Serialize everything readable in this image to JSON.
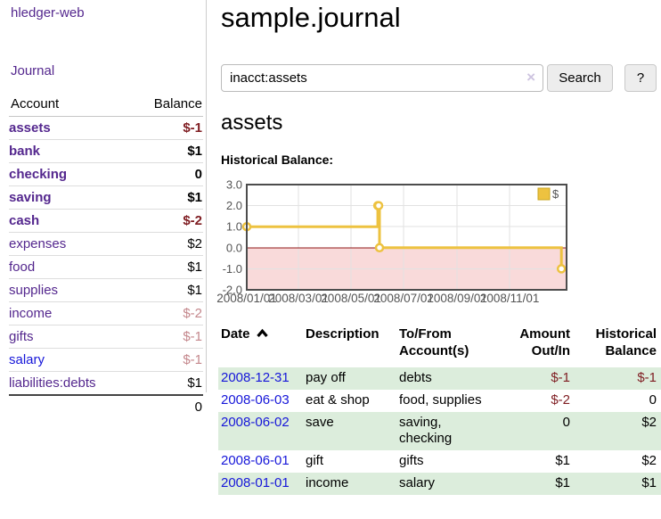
{
  "app": {
    "title": "hledger-web",
    "nav": {
      "journal": "Journal"
    }
  },
  "sidebar": {
    "header": {
      "account": "Account",
      "balance": "Balance"
    },
    "accounts": [
      {
        "name": "assets",
        "indent": 1,
        "bold": true,
        "blue": false,
        "balance": "$-1",
        "balance_class": "neg-strong"
      },
      {
        "name": "bank",
        "indent": 2,
        "bold": true,
        "blue": false,
        "balance": "$1",
        "balance_class": "pos"
      },
      {
        "name": "checking",
        "indent": 3,
        "bold": true,
        "blue": false,
        "balance": "0",
        "balance_class": "pos"
      },
      {
        "name": "saving",
        "indent": 3,
        "bold": true,
        "blue": false,
        "balance": "$1",
        "balance_class": "pos"
      },
      {
        "name": "cash",
        "indent": 2,
        "bold": true,
        "blue": false,
        "balance": "$-2",
        "balance_class": "neg-strong"
      },
      {
        "name": "expenses",
        "indent": 1,
        "bold": false,
        "blue": false,
        "balance": "$2",
        "balance_class": "pos"
      },
      {
        "name": "food",
        "indent": 2,
        "bold": false,
        "blue": false,
        "balance": "$1",
        "balance_class": "pos"
      },
      {
        "name": "supplies",
        "indent": 2,
        "bold": false,
        "blue": false,
        "balance": "$1",
        "balance_class": "pos"
      },
      {
        "name": "income",
        "indent": 1,
        "bold": false,
        "blue": false,
        "balance": "$-2",
        "balance_class": "neg-weak"
      },
      {
        "name": "gifts",
        "indent": 2,
        "bold": false,
        "blue": false,
        "balance": "$-1",
        "balance_class": "neg-weak"
      },
      {
        "name": "salary",
        "indent": 2,
        "bold": false,
        "blue": true,
        "balance": "$-1",
        "balance_class": "neg-weak"
      },
      {
        "name": "liabilities:debts",
        "indent": 1,
        "bold": false,
        "blue": false,
        "balance": "$1",
        "balance_class": "pos"
      }
    ],
    "total": "0"
  },
  "main": {
    "title": "sample.journal",
    "search": {
      "value": "inacct:assets",
      "clear_icon": "×",
      "button_label": "Search",
      "help_label": "?"
    },
    "account_heading": "assets",
    "chart_label": "Historical Balance:"
  },
  "chart_data": {
    "type": "line",
    "style": "step",
    "title": "Historical Balance",
    "series": [
      {
        "name": "$",
        "color": "#edc240",
        "points": [
          [
            "2008-01-01",
            1
          ],
          [
            "2008-06-01",
            2
          ],
          [
            "2008-06-02",
            2
          ],
          [
            "2008-06-03",
            0
          ],
          [
            "2008-12-31",
            -1
          ]
        ]
      }
    ],
    "point_days": [
      0,
      152,
      153,
      154,
      365
    ],
    "x_tick_days": [
      0,
      60,
      121,
      182,
      244,
      305
    ],
    "x_tick_labels": [
      "2008/01/01",
      "2008/03/01",
      "2008/05/01",
      "2008/07/01",
      "2008/09/01",
      "2008/11/01"
    ],
    "x_range_days": [
      0,
      371
    ],
    "y_ticks": [
      3,
      2,
      1,
      0,
      -1,
      -2
    ],
    "y_range": [
      -2,
      3
    ],
    "legend": {
      "label": "$",
      "position": "top-right"
    },
    "grid": true,
    "colors": {
      "line": "#edc240",
      "marker_fill": "#ffffff",
      "grid": "#e2e2e2",
      "border": "#4d4d4d",
      "axis_text": "#545454",
      "negative_fill": "#f9dada",
      "zero_line": "#8f1414",
      "legend_swatch_border": "#caa61f"
    }
  },
  "register": {
    "headers": {
      "date": "Date",
      "description": "Description",
      "accounts": "To/From Account(s)",
      "amount": "Amount Out/In",
      "balance": "Historical Balance"
    },
    "rows": [
      {
        "date": "2008-12-31",
        "description": "pay off",
        "accounts": "debts",
        "amount": "$-1",
        "amount_neg": true,
        "balance": "$-1",
        "balance_neg": true,
        "shaded": true
      },
      {
        "date": "2008-06-03",
        "description": "eat & shop",
        "accounts": "food, supplies",
        "amount": "$-2",
        "amount_neg": true,
        "balance": "0",
        "balance_neg": false,
        "shaded": false
      },
      {
        "date": "2008-06-02",
        "description": "save",
        "accounts": "saving, checking",
        "amount": "0",
        "amount_neg": false,
        "balance": "$2",
        "balance_neg": false,
        "shaded": true
      },
      {
        "date": "2008-06-01",
        "description": "gift",
        "accounts": "gifts",
        "amount": "$1",
        "amount_neg": false,
        "balance": "$2",
        "balance_neg": false,
        "shaded": false
      },
      {
        "date": "2008-01-01",
        "description": "income",
        "accounts": "salary",
        "amount": "$1",
        "amount_neg": false,
        "balance": "$1",
        "balance_neg": false,
        "shaded": true
      }
    ]
  }
}
